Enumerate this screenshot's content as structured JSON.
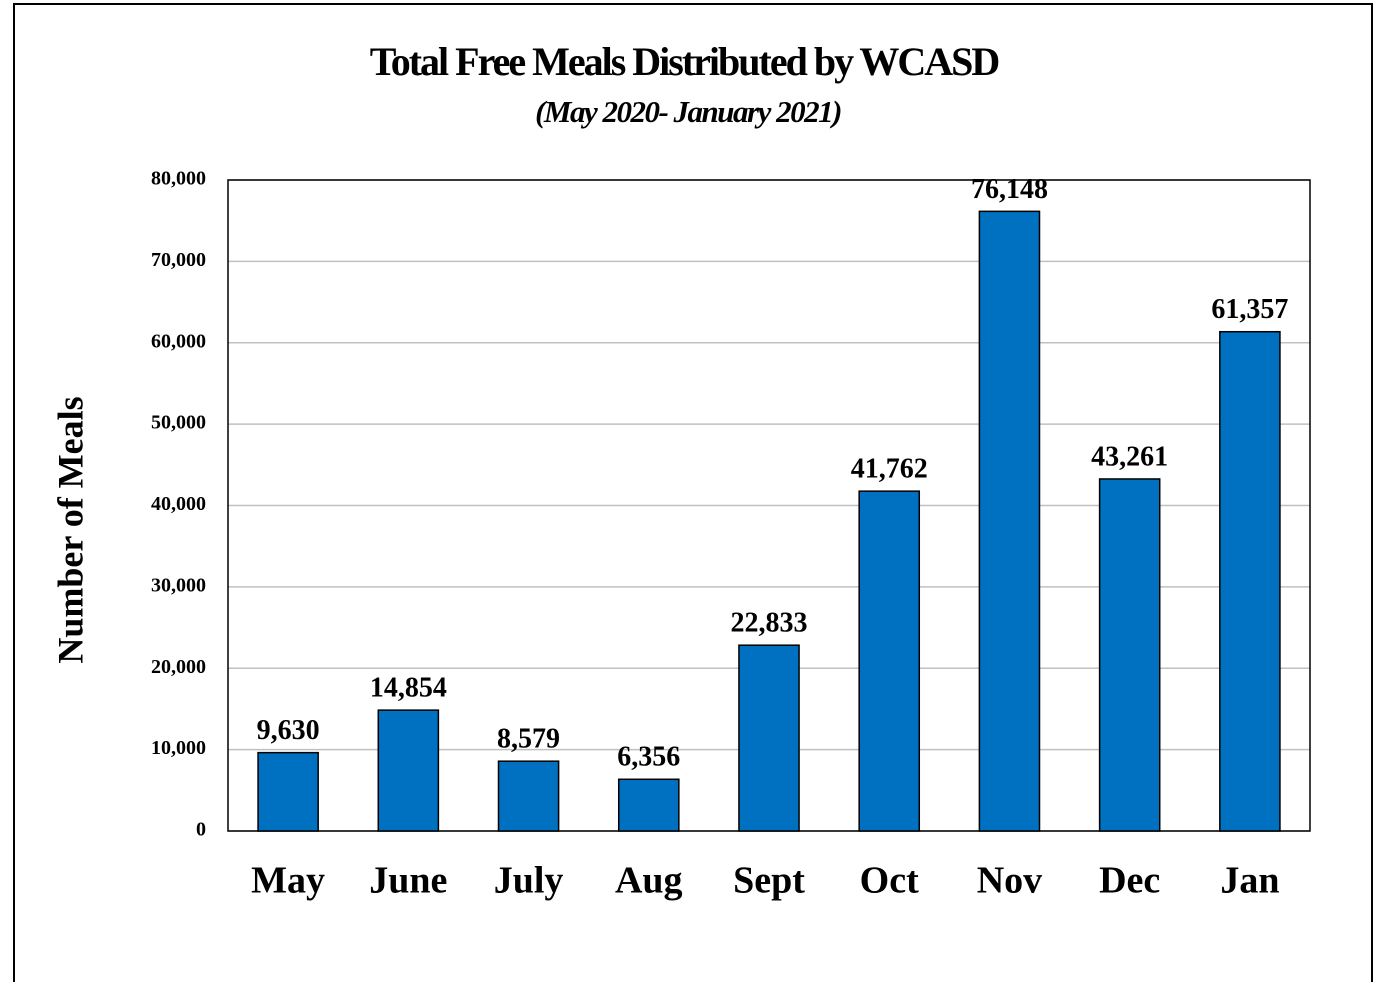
{
  "chart_data": {
    "type": "bar",
    "title": "Total Free Meals Distributed by WCASD",
    "subtitle": "(May 2020- January 2021)",
    "y_axis_label": "Number of  Meals",
    "categories": [
      "May",
      "June",
      "July",
      "Aug",
      "Sept",
      "Oct",
      "Nov",
      "Dec",
      "Jan"
    ],
    "values": [
      9630,
      14854,
      8579,
      6356,
      22833,
      41762,
      76148,
      43261,
      61357
    ],
    "value_labels": [
      "9,630",
      "14,854",
      "8,579",
      "6,356",
      "22,833",
      "41,762",
      "76,148",
      "43,261",
      "61,357"
    ],
    "color": "#0070c0",
    "ylim": [
      0,
      80000
    ],
    "yticks": [
      0,
      {
        "value": 10000,
        "label": "10,000"
      },
      {
        "value": 20000,
        "label": "20,000"
      },
      {
        "value": 30000,
        "label": "30,000"
      },
      {
        "value": 40000,
        "label": "40,000"
      },
      {
        "value": 50000,
        "label": "50,000"
      },
      {
        "value": 60000,
        "label": "60,000"
      },
      {
        "value": 70000,
        "label": "70,000"
      },
      {
        "value": 80000,
        "label": "80,000"
      }
    ],
    "grid": true
  }
}
